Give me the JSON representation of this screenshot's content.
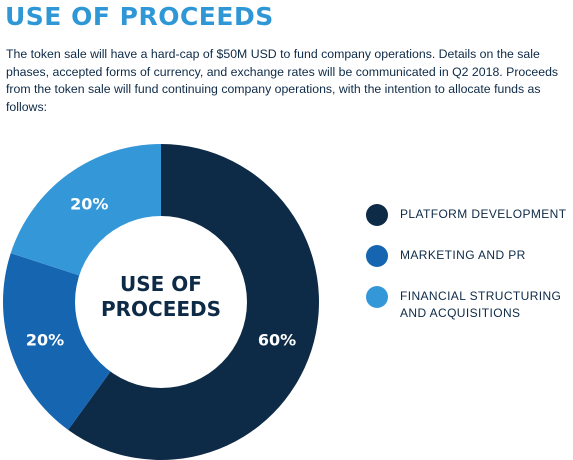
{
  "header": {
    "title": "USE OF PROCEEDS",
    "intro": "The token sale will have a hard-cap of $50M USD to fund company operations.  Details on the sale phases, accepted forms of currency, and exchange rates will be communicated in Q2 2018.  Proceeds from the token sale will fund continuing company operations, with the intention to allocate funds as follows:"
  },
  "chart_data": {
    "type": "pie",
    "title": "",
    "center_label": [
      "USE OF",
      "PROCEEDS"
    ],
    "categories": [
      "PLATFORM DEVELOPMENT",
      "MARKETING AND PR",
      "FINANCIAL STRUCTURING AND ACQUISITIONS"
    ],
    "values": [
      60,
      20,
      20
    ],
    "value_labels": [
      "60%",
      "20%",
      "20%"
    ],
    "colors": [
      "#0d2a47",
      "#1565b0",
      "#3497d8"
    ],
    "legend_position": "right"
  },
  "legend": {
    "items": [
      {
        "label": "PLATFORM DEVELOPMENT",
        "color": "#0d2a47"
      },
      {
        "label": "MARKETING AND PR",
        "color": "#1565b0"
      },
      {
        "label": "FINANCIAL STRUCTURING AND ACQUISITIONS",
        "color": "#3497d8"
      }
    ]
  }
}
